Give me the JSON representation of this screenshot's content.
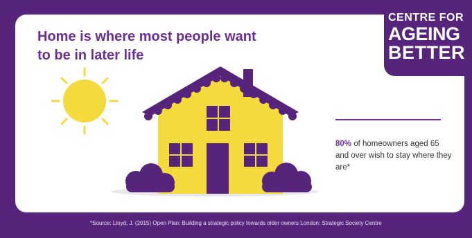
{
  "brand": {
    "line1": "CENTRE FOR",
    "line2": "AGEING",
    "line3": "BETTER"
  },
  "headline": "Home is where most people want to be in later life",
  "stat": {
    "value": "80%",
    "text": " of homeowners aged 65 and over wish to stay where they are*"
  },
  "source": "*Source: Lloyd, J. (2015) Open Plan: Building a strategic policy towards older owners London: Strategic Society Centre",
  "colors": {
    "purple": "#56247a",
    "accent_purple": "#6a2f92",
    "yellow": "#f4da3c",
    "ground": "#e8e8e8"
  },
  "icons": {
    "sun": "sun-icon",
    "house": "house-icon",
    "bush": "bush-icon"
  }
}
